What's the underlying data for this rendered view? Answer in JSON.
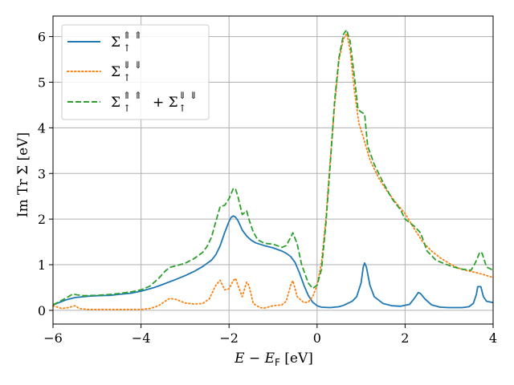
{
  "chart_data": {
    "type": "line",
    "xlabel": "E − E_F [eV]",
    "ylabel": "Im Tr Σ [eV]",
    "xlim": [
      -6,
      4
    ],
    "ylim": [
      -0.3,
      6.45
    ],
    "xticks": [
      -6,
      -4,
      -2,
      0,
      2,
      4
    ],
    "xtick_labels": [
      "−6",
      "−4",
      "−2",
      "0",
      "2",
      "4"
    ],
    "yticks": [
      0,
      1,
      2,
      3,
      4,
      5,
      6
    ],
    "ytick_labels": [
      "0",
      "1",
      "2",
      "3",
      "4",
      "5",
      "6"
    ],
    "grid": true,
    "legend_position": "top-left",
    "series": [
      {
        "name": "Σ↑⇑⇑",
        "color": "#1f77b4",
        "style": "solid",
        "points": [
          [
            -6,
            0.12
          ],
          [
            -5.7,
            0.23
          ],
          [
            -5.5,
            0.28
          ],
          [
            -5.2,
            0.31
          ],
          [
            -5.0,
            0.32
          ],
          [
            -4.7,
            0.33
          ],
          [
            -4.5,
            0.35
          ],
          [
            -4.2,
            0.38
          ],
          [
            -4.0,
            0.42
          ],
          [
            -3.7,
            0.5
          ],
          [
            -3.5,
            0.57
          ],
          [
            -3.2,
            0.68
          ],
          [
            -3.0,
            0.76
          ],
          [
            -2.8,
            0.85
          ],
          [
            -2.6,
            0.96
          ],
          [
            -2.4,
            1.1
          ],
          [
            -2.3,
            1.22
          ],
          [
            -2.2,
            1.42
          ],
          [
            -2.1,
            1.7
          ],
          [
            -2.0,
            1.95
          ],
          [
            -1.95,
            2.04
          ],
          [
            -1.9,
            2.07
          ],
          [
            -1.85,
            2.04
          ],
          [
            -1.8,
            1.97
          ],
          [
            -1.75,
            1.87
          ],
          [
            -1.7,
            1.76
          ],
          [
            -1.6,
            1.63
          ],
          [
            -1.5,
            1.54
          ],
          [
            -1.4,
            1.48
          ],
          [
            -1.2,
            1.42
          ],
          [
            -1.0,
            1.37
          ],
          [
            -0.8,
            1.3
          ],
          [
            -0.7,
            1.25
          ],
          [
            -0.6,
            1.18
          ],
          [
            -0.5,
            1.05
          ],
          [
            -0.4,
            0.82
          ],
          [
            -0.3,
            0.55
          ],
          [
            -0.2,
            0.33
          ],
          [
            -0.1,
            0.18
          ],
          [
            0.0,
            0.1
          ],
          [
            0.1,
            0.07
          ],
          [
            0.3,
            0.06
          ],
          [
            0.5,
            0.08
          ],
          [
            0.6,
            0.11
          ],
          [
            0.8,
            0.2
          ],
          [
            0.9,
            0.3
          ],
          [
            1.0,
            0.6
          ],
          [
            1.05,
            0.95
          ],
          [
            1.08,
            1.04
          ],
          [
            1.12,
            0.95
          ],
          [
            1.2,
            0.55
          ],
          [
            1.3,
            0.3
          ],
          [
            1.5,
            0.15
          ],
          [
            1.7,
            0.1
          ],
          [
            1.9,
            0.09
          ],
          [
            2.1,
            0.13
          ],
          [
            2.2,
            0.25
          ],
          [
            2.3,
            0.39
          ],
          [
            2.35,
            0.37
          ],
          [
            2.45,
            0.25
          ],
          [
            2.6,
            0.12
          ],
          [
            2.8,
            0.07
          ],
          [
            3.0,
            0.06
          ],
          [
            3.3,
            0.06
          ],
          [
            3.45,
            0.08
          ],
          [
            3.55,
            0.15
          ],
          [
            3.62,
            0.35
          ],
          [
            3.65,
            0.52
          ],
          [
            3.72,
            0.52
          ],
          [
            3.78,
            0.3
          ],
          [
            3.85,
            0.2
          ],
          [
            4.0,
            0.17
          ]
        ]
      },
      {
        "name": "Σ↑⇓⇓",
        "color": "#ff7f0e",
        "style": "dotted",
        "points": [
          [
            -6,
            0.1
          ],
          [
            -5.8,
            0.04
          ],
          [
            -5.65,
            0.06
          ],
          [
            -5.5,
            0.1
          ],
          [
            -5.4,
            0.04
          ],
          [
            -5.2,
            0.02
          ],
          [
            -5.0,
            0.02
          ],
          [
            -4.5,
            0.02
          ],
          [
            -4.0,
            0.02
          ],
          [
            -3.8,
            0.04
          ],
          [
            -3.6,
            0.1
          ],
          [
            -3.5,
            0.17
          ],
          [
            -3.35,
            0.26
          ],
          [
            -3.2,
            0.24
          ],
          [
            -3.0,
            0.16
          ],
          [
            -2.8,
            0.14
          ],
          [
            -2.6,
            0.15
          ],
          [
            -2.45,
            0.25
          ],
          [
            -2.3,
            0.55
          ],
          [
            -2.2,
            0.66
          ],
          [
            -2.1,
            0.45
          ],
          [
            -2.0,
            0.47
          ],
          [
            -1.9,
            0.66
          ],
          [
            -1.85,
            0.7
          ],
          [
            -1.8,
            0.55
          ],
          [
            -1.7,
            0.3
          ],
          [
            -1.6,
            0.62
          ],
          [
            -1.55,
            0.55
          ],
          [
            -1.45,
            0.15
          ],
          [
            -1.3,
            0.06
          ],
          [
            -1.2,
            0.05
          ],
          [
            -1.0,
            0.1
          ],
          [
            -0.8,
            0.12
          ],
          [
            -0.7,
            0.2
          ],
          [
            -0.6,
            0.55
          ],
          [
            -0.55,
            0.65
          ],
          [
            -0.45,
            0.3
          ],
          [
            -0.3,
            0.17
          ],
          [
            -0.2,
            0.18
          ],
          [
            -0.1,
            0.3
          ],
          [
            0.0,
            0.55
          ],
          [
            0.1,
            1.05
          ],
          [
            0.2,
            2.0
          ],
          [
            0.3,
            3.3
          ],
          [
            0.4,
            4.5
          ],
          [
            0.5,
            5.5
          ],
          [
            0.6,
            5.95
          ],
          [
            0.68,
            6.07
          ],
          [
            0.75,
            5.7
          ],
          [
            0.85,
            4.8
          ],
          [
            0.95,
            4.1
          ],
          [
            1.05,
            3.8
          ],
          [
            1.2,
            3.3
          ],
          [
            1.4,
            2.9
          ],
          [
            1.6,
            2.6
          ],
          [
            1.8,
            2.35
          ],
          [
            2.0,
            2.12
          ],
          [
            2.2,
            1.8
          ],
          [
            2.4,
            1.5
          ],
          [
            2.6,
            1.3
          ],
          [
            2.8,
            1.15
          ],
          [
            3.0,
            1.03
          ],
          [
            3.2,
            0.93
          ],
          [
            3.4,
            0.87
          ],
          [
            3.6,
            0.83
          ],
          [
            3.8,
            0.78
          ],
          [
            4.0,
            0.72
          ]
        ]
      },
      {
        "name": "Σ↑⇑⇑ + Σ↑⇓⇓",
        "color": "#2ca02c",
        "style": "dashed",
        "points": [
          [
            -6,
            0.12
          ],
          [
            -5.8,
            0.22
          ],
          [
            -5.65,
            0.3
          ],
          [
            -5.55,
            0.36
          ],
          [
            -5.45,
            0.34
          ],
          [
            -5.3,
            0.32
          ],
          [
            -5.0,
            0.33
          ],
          [
            -4.7,
            0.35
          ],
          [
            -4.5,
            0.37
          ],
          [
            -4.2,
            0.41
          ],
          [
            -4.0,
            0.45
          ],
          [
            -3.8,
            0.53
          ],
          [
            -3.6,
            0.7
          ],
          [
            -3.45,
            0.86
          ],
          [
            -3.35,
            0.94
          ],
          [
            -3.2,
            0.98
          ],
          [
            -3.0,
            1.03
          ],
          [
            -2.8,
            1.13
          ],
          [
            -2.6,
            1.27
          ],
          [
            -2.5,
            1.4
          ],
          [
            -2.4,
            1.6
          ],
          [
            -2.3,
            1.95
          ],
          [
            -2.2,
            2.28
          ],
          [
            -2.1,
            2.3
          ],
          [
            -2.0,
            2.45
          ],
          [
            -1.9,
            2.68
          ],
          [
            -1.85,
            2.65
          ],
          [
            -1.8,
            2.5
          ],
          [
            -1.7,
            2.1
          ],
          [
            -1.6,
            2.18
          ],
          [
            -1.55,
            2.0
          ],
          [
            -1.45,
            1.72
          ],
          [
            -1.35,
            1.55
          ],
          [
            -1.2,
            1.47
          ],
          [
            -1.0,
            1.45
          ],
          [
            -0.8,
            1.38
          ],
          [
            -0.7,
            1.42
          ],
          [
            -0.6,
            1.6
          ],
          [
            -0.55,
            1.7
          ],
          [
            -0.45,
            1.45
          ],
          [
            -0.35,
            1.0
          ],
          [
            -0.2,
            0.6
          ],
          [
            -0.1,
            0.48
          ],
          [
            0.0,
            0.55
          ],
          [
            0.1,
            0.9
          ],
          [
            0.2,
            1.9
          ],
          [
            0.3,
            3.2
          ],
          [
            0.4,
            4.6
          ],
          [
            0.5,
            5.55
          ],
          [
            0.6,
            6.05
          ],
          [
            0.67,
            6.15
          ],
          [
            0.75,
            5.9
          ],
          [
            0.85,
            5.1
          ],
          [
            0.93,
            4.4
          ],
          [
            1.0,
            4.35
          ],
          [
            1.08,
            4.3
          ],
          [
            1.15,
            3.6
          ],
          [
            1.3,
            3.2
          ],
          [
            1.5,
            2.8
          ],
          [
            1.7,
            2.45
          ],
          [
            1.9,
            2.2
          ],
          [
            2.0,
            2.0
          ],
          [
            2.2,
            1.85
          ],
          [
            2.35,
            1.7
          ],
          [
            2.5,
            1.3
          ],
          [
            2.7,
            1.1
          ],
          [
            2.9,
            1.02
          ],
          [
            3.1,
            0.95
          ],
          [
            3.3,
            0.9
          ],
          [
            3.5,
            0.88
          ],
          [
            3.6,
            1.05
          ],
          [
            3.7,
            1.28
          ],
          [
            3.75,
            1.25
          ],
          [
            3.85,
            0.95
          ],
          [
            4.0,
            0.88
          ]
        ]
      }
    ]
  }
}
